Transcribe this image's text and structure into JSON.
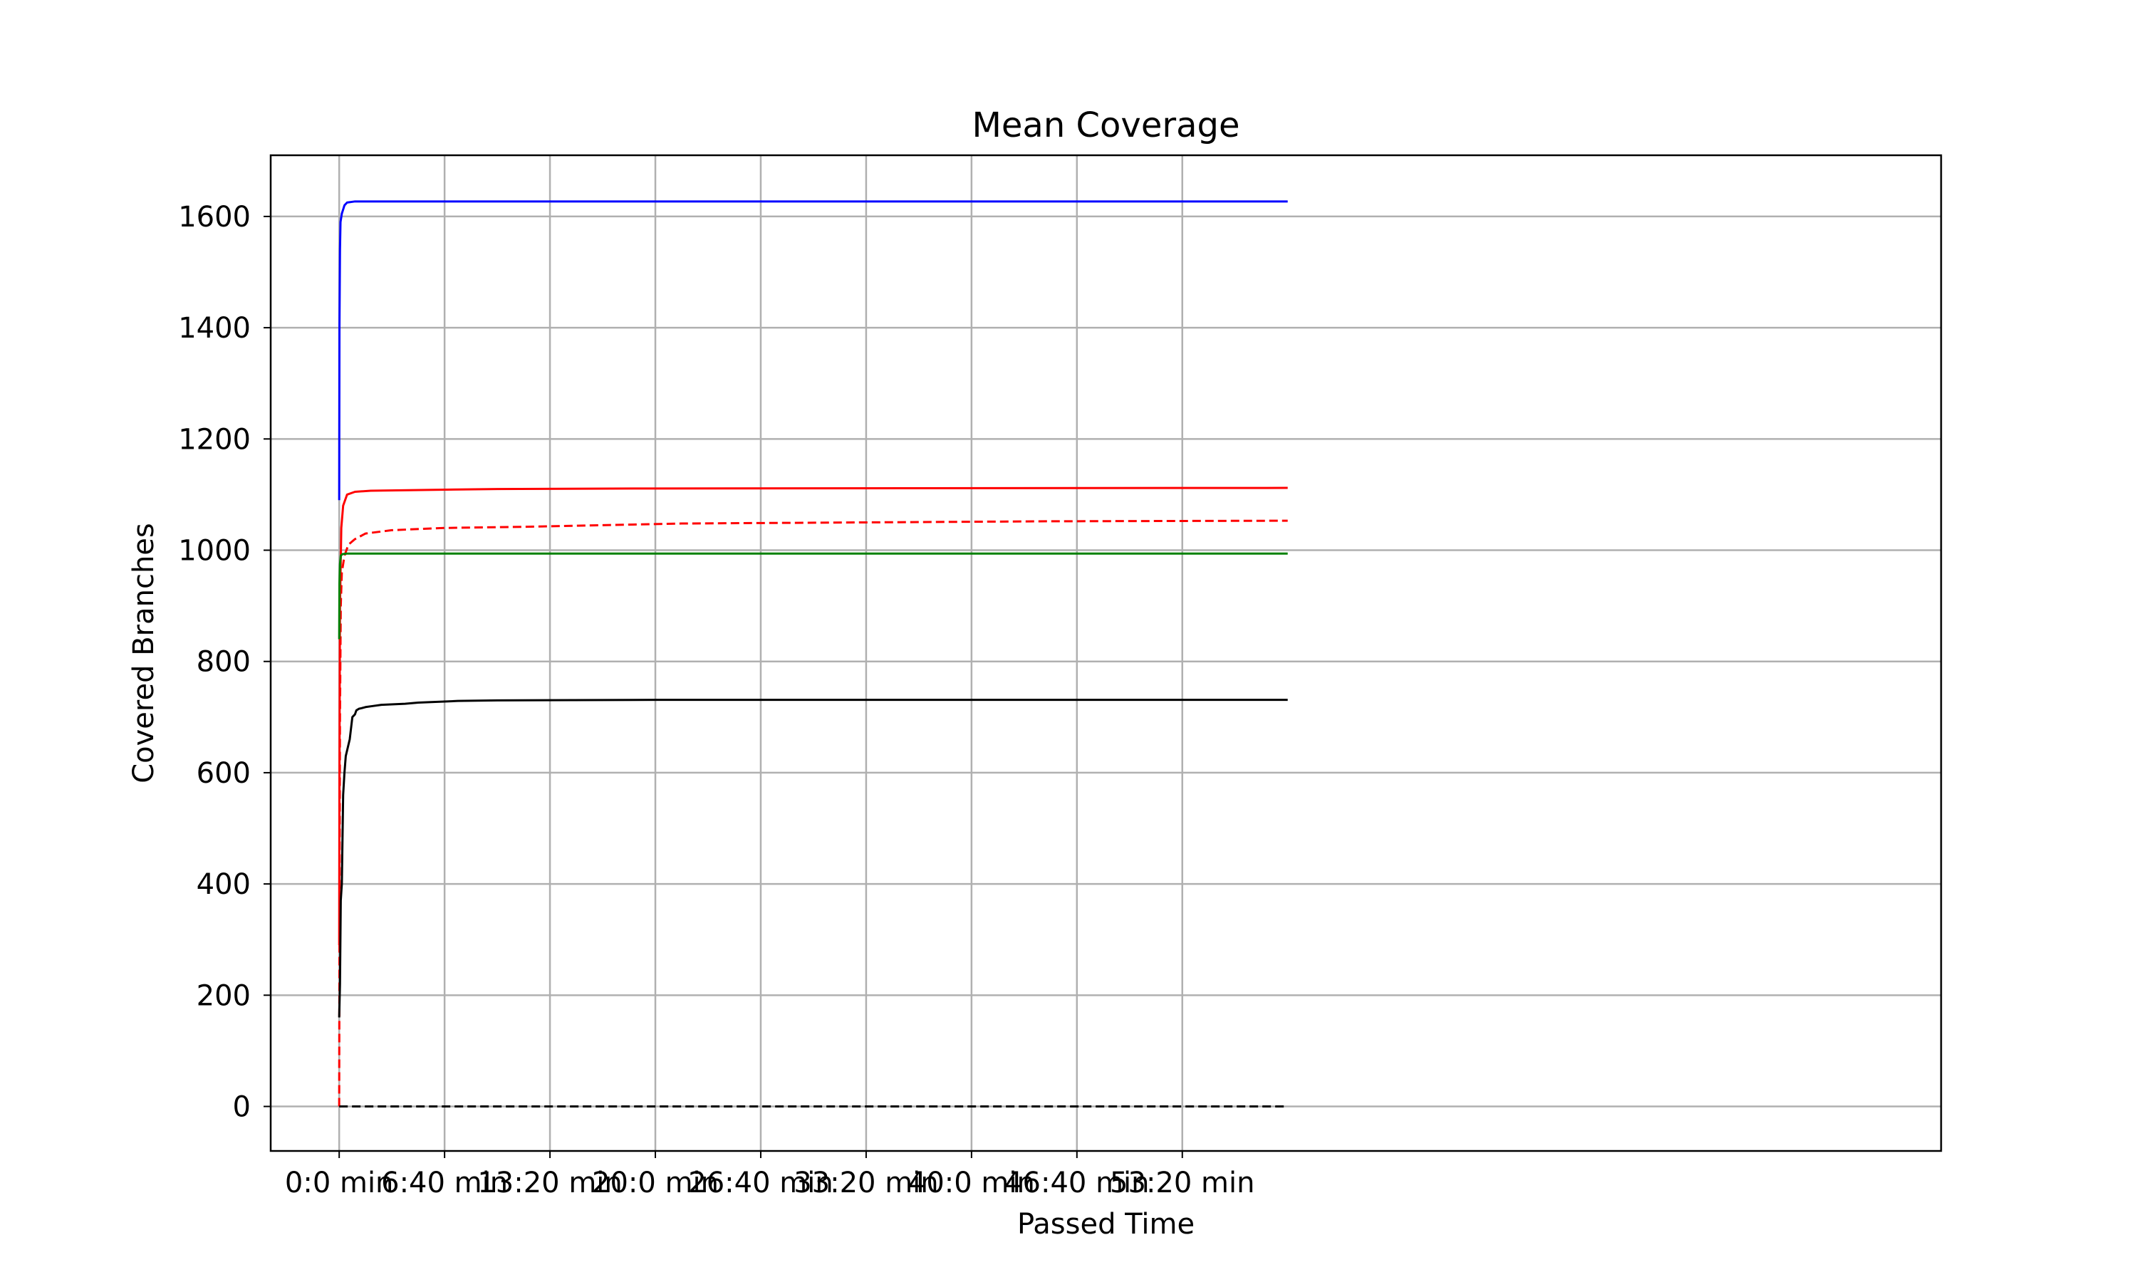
{
  "chart_data": {
    "type": "line",
    "title": "Mean Coverage",
    "xlabel": "Passed Time",
    "ylabel": "Covered Branches",
    "x_unit": "seconds",
    "xlim": [
      -260,
      6080
    ],
    "ylim": [
      -80,
      1710
    ],
    "grid": true,
    "x_ticks": [
      {
        "value": 0,
        "label": "0:0 min"
      },
      {
        "value": 400,
        "label": "6:40 min"
      },
      {
        "value": 800,
        "label": "13:20 min"
      },
      {
        "value": 1200,
        "label": "20:0 min"
      },
      {
        "value": 1600,
        "label": "26:40 min"
      },
      {
        "value": 2000,
        "label": "33:20 min"
      },
      {
        "value": 2400,
        "label": "40:0 min"
      },
      {
        "value": 2800,
        "label": "46:40 min"
      },
      {
        "value": 3200,
        "label": "53:20 min"
      }
    ],
    "y_ticks": [
      {
        "value": 0,
        "label": "0"
      },
      {
        "value": 200,
        "label": "200"
      },
      {
        "value": 400,
        "label": "400"
      },
      {
        "value": 600,
        "label": "600"
      },
      {
        "value": 800,
        "label": "800"
      },
      {
        "value": 1000,
        "label": "1000"
      },
      {
        "value": 1200,
        "label": "1200"
      },
      {
        "value": 1400,
        "label": "1400"
      },
      {
        "value": 1600,
        "label": "1600"
      }
    ],
    "series": [
      {
        "name": "blue-solid",
        "color": "#0000ff",
        "dash": "solid",
        "x": [
          0,
          1,
          3,
          5,
          10,
          20,
          30,
          60,
          3600
        ],
        "y": [
          1090,
          1400,
          1540,
          1590,
          1605,
          1620,
          1625,
          1627,
          1627
        ]
      },
      {
        "name": "red-solid",
        "color": "#ff0000",
        "dash": "solid",
        "x": [
          0,
          1,
          3,
          8,
          15,
          30,
          60,
          120,
          600,
          1200,
          3600
        ],
        "y": [
          290,
          600,
          900,
          1040,
          1080,
          1100,
          1105,
          1107,
          1110,
          1111,
          1112
        ]
      },
      {
        "name": "red-dashed",
        "color": "#ff0000",
        "dash": "dashed",
        "x": [
          0,
          1,
          3,
          6,
          10,
          20,
          35,
          60,
          100,
          200,
          400,
          700,
          1000,
          1300,
          2000,
          2700,
          3600
        ],
        "y": [
          0,
          300,
          700,
          900,
          960,
          990,
          1010,
          1020,
          1030,
          1036,
          1040,
          1042,
          1045,
          1048,
          1050,
          1052,
          1053
        ]
      },
      {
        "name": "green-solid",
        "color": "#008000",
        "dash": "solid",
        "x": [
          0,
          1,
          3,
          6,
          12,
          30,
          3600
        ],
        "y": [
          840,
          940,
          975,
          990,
          993,
          994,
          994
        ]
      },
      {
        "name": "black-solid",
        "color": "#000000",
        "dash": "solid",
        "x": [
          0,
          3,
          6,
          10,
          15,
          20,
          25,
          30,
          40,
          50,
          60,
          65,
          75,
          85,
          100,
          130,
          160,
          250,
          300,
          450,
          600,
          1200,
          3600
        ],
        "y": [
          160,
          220,
          370,
          400,
          560,
          600,
          630,
          640,
          660,
          700,
          705,
          712,
          715,
          716,
          718,
          720,
          722,
          724,
          726,
          729,
          730,
          731,
          731
        ]
      },
      {
        "name": "black-dashed",
        "color": "#000000",
        "dash": "dashed",
        "x": [
          0,
          3600
        ],
        "y": [
          0,
          0
        ]
      }
    ]
  }
}
